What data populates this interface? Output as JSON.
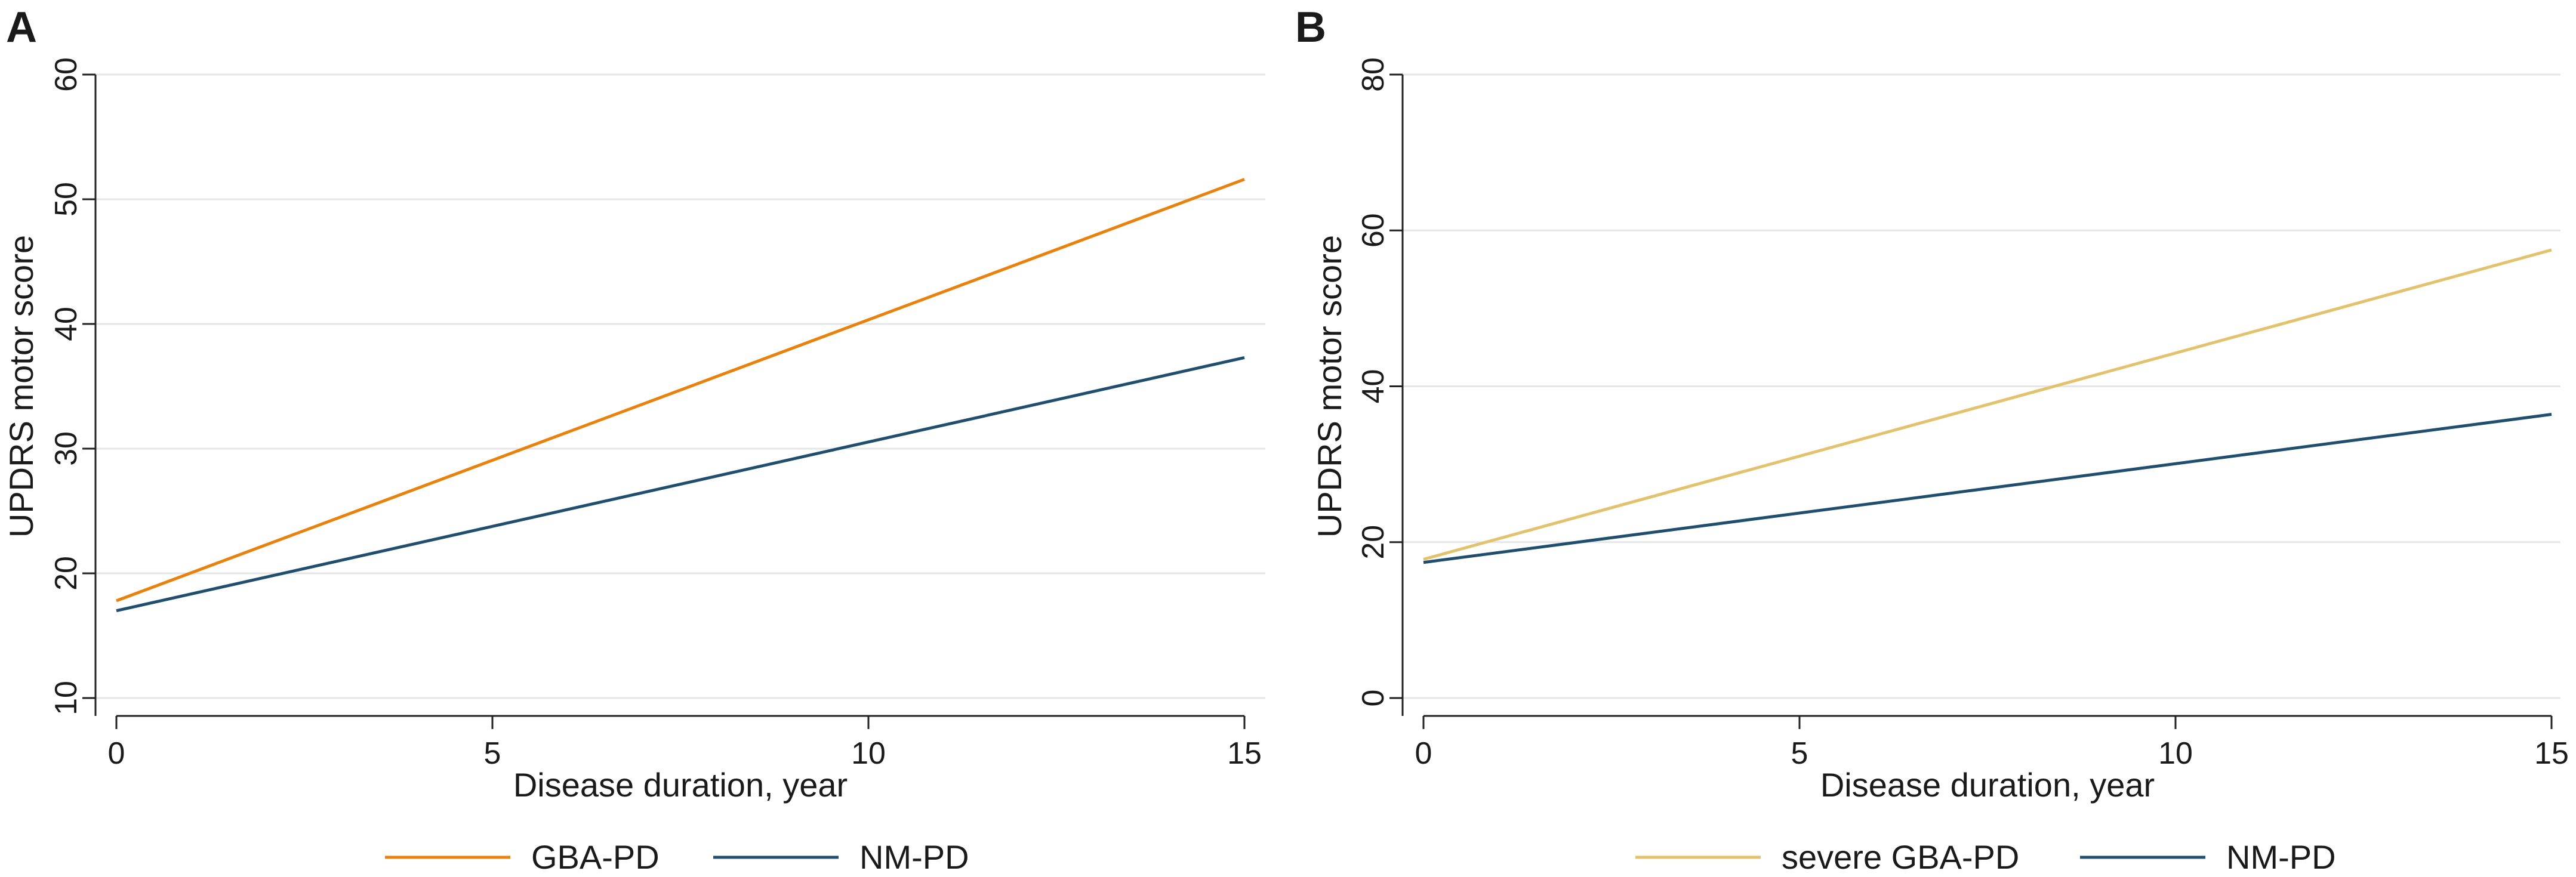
{
  "chart_data": [
    {
      "panel": "A",
      "type": "line",
      "xlabel": "Disease duration, year",
      "ylabel": "UPDRS motor score",
      "xlim": [
        0,
        15
      ],
      "ylim": [
        10,
        60
      ],
      "xticks": [
        0,
        5,
        10,
        15
      ],
      "yticks": [
        10,
        20,
        30,
        40,
        50,
        60
      ],
      "grid": true,
      "series": [
        {
          "name": "GBA-PD",
          "color": "#E8820C",
          "x": [
            0,
            15
          ],
          "y": [
            17.8,
            51.6
          ]
        },
        {
          "name": "NM-PD",
          "color": "#1F4E6E",
          "x": [
            0,
            15
          ],
          "y": [
            17.0,
            37.3
          ]
        }
      ],
      "legend_position": "bottom"
    },
    {
      "panel": "B",
      "type": "line",
      "xlabel": "Disease duration, year",
      "ylabel": "UPDRS motor score",
      "xlim": [
        0,
        15
      ],
      "ylim": [
        0,
        80
      ],
      "xticks": [
        0,
        5,
        10,
        15
      ],
      "yticks": [
        0,
        20,
        40,
        60,
        80
      ],
      "grid": true,
      "series": [
        {
          "name": "severe GBA-PD",
          "color": "#E3C26E",
          "x": [
            0,
            15
          ],
          "y": [
            17.8,
            57.5
          ]
        },
        {
          "name": "NM-PD",
          "color": "#1F4E6E",
          "x": [
            0,
            15
          ],
          "y": [
            17.4,
            36.4
          ]
        }
      ],
      "legend_position": "bottom"
    }
  ]
}
